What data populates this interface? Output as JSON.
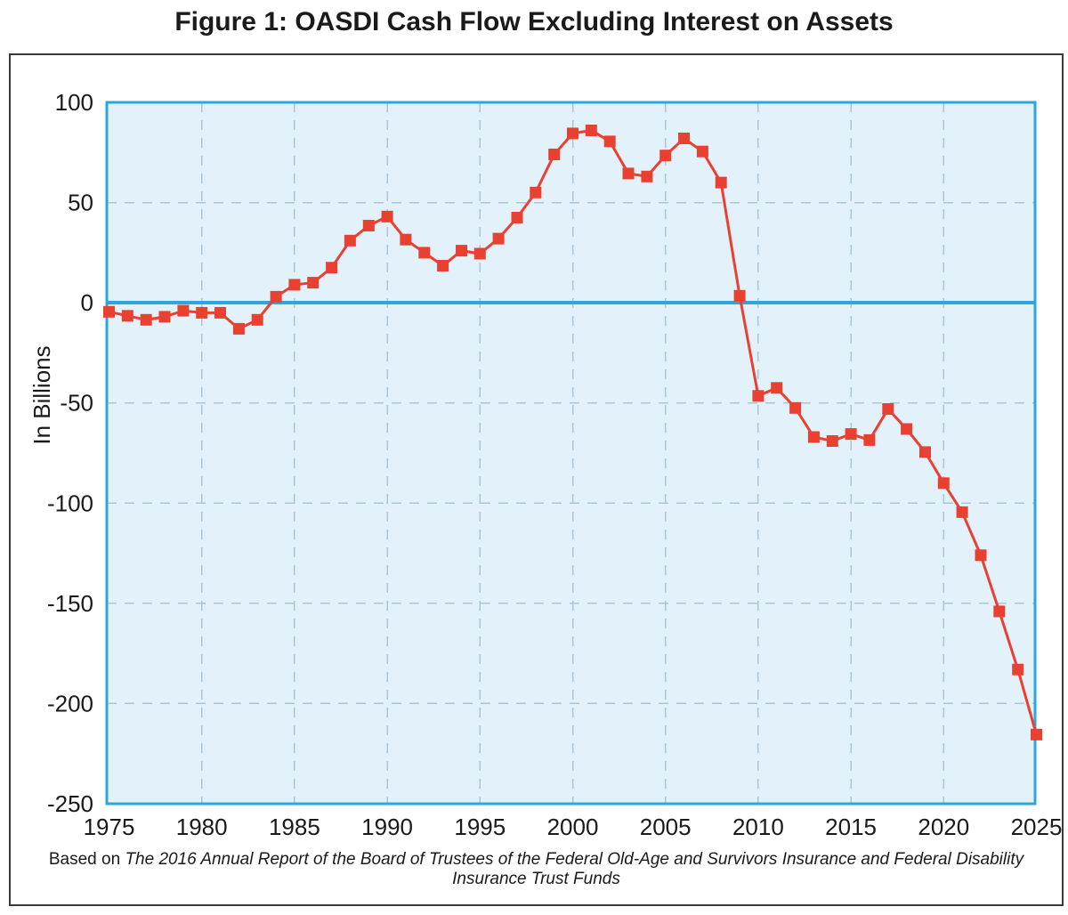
{
  "title": "Figure 1: OASDI Cash Flow Excluding Interest on Assets",
  "caption": {
    "prefix": "Based on ",
    "italic": "The 2016 Annual Report of the Board of Trustees of the Federal Old-Age and Survivors Insurance and Federal Disability Insurance Trust Funds"
  },
  "chart_data": {
    "type": "line",
    "title": "Figure 1: OASDI Cash Flow Excluding Interest on Assets",
    "xlabel": "",
    "ylabel": "In Billions",
    "xlim": [
      1975,
      2025
    ],
    "ylim": [
      -250,
      100
    ],
    "x_ticks": [
      1975,
      1980,
      1985,
      1990,
      1995,
      2000,
      2005,
      2010,
      2015,
      2020,
      2025
    ],
    "y_ticks": [
      100,
      50,
      0,
      -50,
      -100,
      -150,
      -200,
      -250
    ],
    "grid": "dashed",
    "zero_line": true,
    "marker": "square",
    "legend": "none",
    "series": [
      {
        "name": "OASDI cash flow excluding interest on assets ($ billions)",
        "x": [
          1975,
          1976,
          1977,
          1978,
          1979,
          1980,
          1981,
          1982,
          1983,
          1984,
          1985,
          1986,
          1987,
          1988,
          1989,
          1990,
          1991,
          1992,
          1993,
          1994,
          1995,
          1996,
          1997,
          1998,
          1999,
          2000,
          2001,
          2002,
          2003,
          2004,
          2005,
          2006,
          2007,
          2008,
          2009,
          2010,
          2011,
          2012,
          2013,
          2014,
          2015,
          2016,
          2017,
          2018,
          2019,
          2020,
          2021,
          2022,
          2023,
          2024,
          2025
        ],
        "values": [
          -4.5,
          -6.5,
          -8.5,
          -7,
          -4,
          -5,
          -5,
          -13,
          -8.5,
          3,
          9,
          10,
          17.5,
          31,
          38.5,
          43,
          31.5,
          25,
          18.5,
          26,
          24.5,
          32,
          42.5,
          55,
          74,
          84.5,
          86,
          80.5,
          64.5,
          63,
          73.5,
          82,
          75.5,
          60,
          3.5,
          -46.5,
          -42.5,
          -52.5,
          -67,
          -69,
          -65.5,
          -68.5,
          -53,
          -63,
          -74.5,
          -90,
          -104.5,
          -126,
          -154,
          -183,
          -215.5
        ]
      }
    ],
    "colors": {
      "line": "#e84132",
      "marker": "#e84132",
      "plot_background": "#e2f1fa",
      "axis_blue": "#2ba6de",
      "gridline": "#a9c6d8",
      "frame": "#3a3a3a",
      "text": "#1a1a1a"
    }
  }
}
